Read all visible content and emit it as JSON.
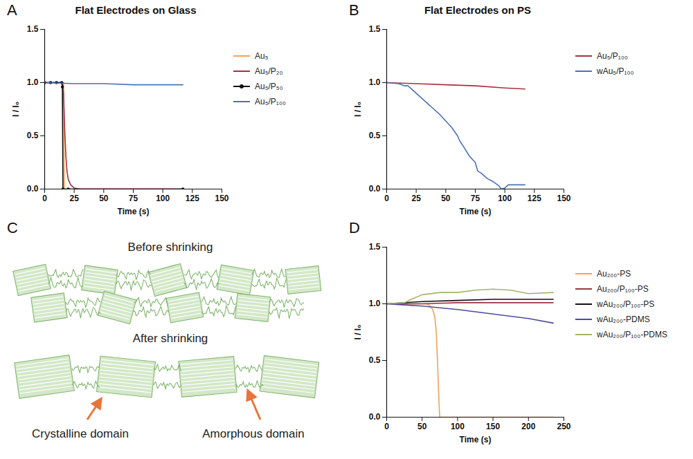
{
  "chart_data": [
    {
      "panel": "A",
      "type": "line",
      "title": "Flat Electrodes on Glass",
      "x_label": "Time (s)",
      "y_label": "I / I₀",
      "xlim": [
        0,
        150
      ],
      "xticks": [
        0,
        25,
        50,
        75,
        100,
        125,
        150
      ],
      "ylim": [
        0,
        1.5
      ],
      "yticks": [
        {
          "value": 0,
          "label": "0.0"
        },
        {
          "value": 0.5,
          "label": "0.5"
        },
        {
          "value": 1,
          "label": "1.0"
        },
        {
          "value": 1.5,
          "label": "1.5"
        }
      ],
      "legend": "right",
      "series": [
        {
          "name": "Au₅",
          "color": "#F5A05A",
          "x": [
            0,
            10,
            15,
            16,
            16.6,
            20,
            50,
            117
          ],
          "values": [
            1,
            1,
            1,
            1,
            0,
            0,
            0,
            0
          ]
        },
        {
          "name": "Au₅/P₂₀",
          "color": "#A3323F",
          "x": [
            0,
            10,
            15,
            16,
            17,
            18,
            19,
            20,
            22,
            25,
            30,
            117
          ],
          "values": [
            1,
            1,
            1,
            0.9,
            0.55,
            0.3,
            0.16,
            0.09,
            0.04,
            0.01,
            0,
            0
          ]
        },
        {
          "name": "Au₅/P₅₀",
          "color": "#111111",
          "marker": "dot",
          "x": [
            0,
            5,
            10,
            14.5,
            15,
            15.5,
            20,
            117
          ],
          "values": [
            1,
            1,
            1,
            1,
            0.96,
            0,
            0,
            0
          ]
        },
        {
          "name": "Au₅/P₁₀₀",
          "color": "#4A70B8",
          "x": [
            0,
            25,
            50,
            75,
            100,
            117
          ],
          "values": [
            1,
            0.99,
            0.99,
            0.98,
            0.98,
            0.98
          ]
        }
      ]
    },
    {
      "panel": "B",
      "type": "line",
      "title": "Flat Electrodes on PS",
      "x_label": "Time (s)",
      "y_label": "I / I₀",
      "xlim": [
        0,
        150
      ],
      "xticks": [
        0,
        25,
        50,
        75,
        100,
        125,
        150
      ],
      "ylim": [
        0,
        1.5
      ],
      "yticks": [
        {
          "value": 0,
          "label": "0.0"
        },
        {
          "value": 0.5,
          "label": "0.5"
        },
        {
          "value": 1,
          "label": "1.0"
        },
        {
          "value": 1.5,
          "label": "1.5"
        }
      ],
      "legend": "right",
      "series": [
        {
          "name": "Au₅/P₁₀₀",
          "color": "#A3323F",
          "x": [
            0,
            25,
            50,
            75,
            100,
            117
          ],
          "values": [
            1,
            0.99,
            0.98,
            0.97,
            0.95,
            0.94
          ]
        },
        {
          "name": "wAu₅/P₁₀₀",
          "color": "#4A70B8",
          "x": [
            0,
            10,
            15,
            18,
            20,
            25,
            30,
            35,
            40,
            45,
            50,
            55,
            60,
            62,
            65,
            70,
            75,
            77,
            80,
            85,
            90,
            95,
            97,
            100,
            103,
            117
          ],
          "values": [
            1,
            0.99,
            0.97,
            0.97,
            0.95,
            0.9,
            0.85,
            0.8,
            0.75,
            0.7,
            0.64,
            0.58,
            0.5,
            0.45,
            0.4,
            0.31,
            0.25,
            0.17,
            0.15,
            0.1,
            0.07,
            0.03,
            0,
            0.01,
            0.04,
            0.04
          ]
        }
      ]
    },
    {
      "panel": "C",
      "type": "diagram",
      "labels": {
        "before": "Before shrinking",
        "after": "After shrinking",
        "crystalline": "Crystalline domain",
        "amorphous": "Amorphous domain"
      }
    },
    {
      "panel": "D",
      "type": "line",
      "x_label": "Time (s)",
      "y_label": "I / I₀",
      "xlim": [
        0,
        250
      ],
      "xticks": [
        0,
        50,
        100,
        150,
        200,
        250
      ],
      "ylim": [
        0,
        1.5
      ],
      "yticks": [
        {
          "value": 0,
          "label": "0.0"
        },
        {
          "value": 0.5,
          "label": "0.5"
        },
        {
          "value": 1,
          "label": "1.0"
        },
        {
          "value": 1.5,
          "label": "1.5"
        }
      ],
      "legend": "right",
      "series": [
        {
          "name": "Au₂₀₀-PS",
          "color": "#F5A05A",
          "x": [
            0,
            25,
            50,
            55,
            60,
            65,
            68,
            70,
            72,
            74,
            75,
            100,
            235
          ],
          "values": [
            1,
            1,
            1,
            1,
            0.99,
            0.95,
            0.88,
            0.75,
            0.45,
            0.1,
            0,
            0,
            0
          ]
        },
        {
          "name": "Au₂₀₀/P₁₀₀-PS",
          "color": "#A3323F",
          "x": [
            0,
            50,
            100,
            150,
            200,
            235
          ],
          "values": [
            1,
            1,
            1.01,
            1.01,
            1.01,
            1.01
          ]
        },
        {
          "name": "wAu₂₀₀/P₁₀₀-PS",
          "color": "#111111",
          "x": [
            0,
            50,
            100,
            150,
            200,
            235
          ],
          "values": [
            1,
            1.02,
            1.03,
            1.04,
            1.04,
            1.04
          ]
        },
        {
          "name": "wAu₂₀₀-PDMS",
          "color": "#4B4BA0",
          "x": [
            0,
            25,
            50,
            100,
            150,
            200,
            235
          ],
          "values": [
            1,
            0.99,
            0.98,
            0.95,
            0.91,
            0.87,
            0.83
          ]
        },
        {
          "name": "wAu₂₀₀/P₁₀₀-PDMS",
          "color": "#A3B46A",
          "x": [
            0,
            25,
            35,
            50,
            75,
            100,
            125,
            150,
            175,
            200,
            235
          ],
          "values": [
            1,
            1.01,
            1.04,
            1.08,
            1.1,
            1.1,
            1.12,
            1.13,
            1.12,
            1.09,
            1.1
          ]
        }
      ]
    }
  ]
}
